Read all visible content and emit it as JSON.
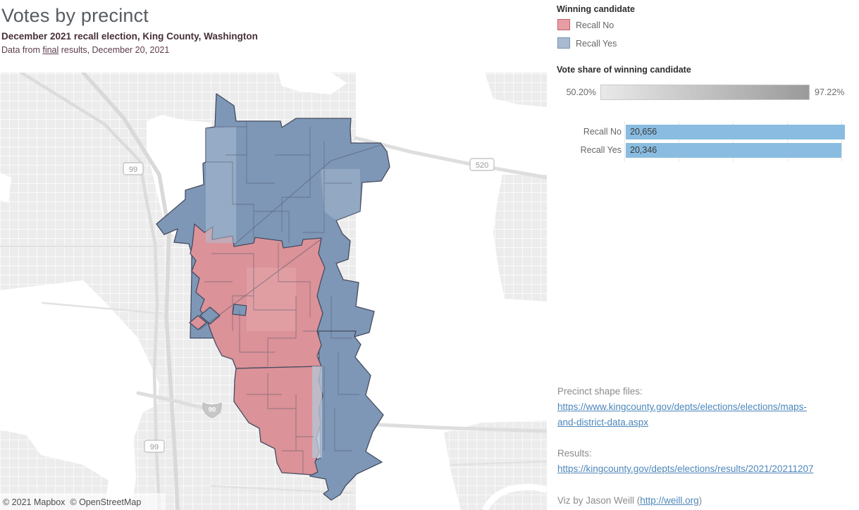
{
  "header": {
    "title": "Votes by precinct",
    "subtitle": "December 2021 recall election, King County, Washington",
    "note_prefix": "Data from ",
    "note_link": "final",
    "note_suffix": " results, December 20, 2021"
  },
  "legend": {
    "title": "Winning candidate",
    "items": [
      {
        "label": "Recall No",
        "fill": "#e89ca3",
        "border": "#c0636e"
      },
      {
        "label": "Recall Yes",
        "fill": "#a9bad0",
        "border": "#7b94af"
      }
    ]
  },
  "vote_share": {
    "title": "Vote share of winning candidate",
    "min_label": "50.20%",
    "max_label": "97.22%",
    "gradient_start": "#e9e9e9",
    "gradient_end": "#9a9a9a"
  },
  "chart_data": {
    "type": "bar",
    "orientation": "horizontal",
    "categories": [
      "Recall No",
      "Recall Yes"
    ],
    "values": [
      20656,
      20346
    ],
    "value_labels": [
      "20,656",
      "20,346"
    ],
    "bar_color": "#89bce0",
    "xlim": [
      0,
      20656
    ],
    "gridlines": true,
    "legend_position": "none"
  },
  "map": {
    "attribution": "© 2021 Mapbox  © OpenStreetMap",
    "colors": {
      "recall_no_fill": "#db9298",
      "recall_yes_fill": "#7e97b6",
      "precinct_stroke": "#454b61",
      "water": "#ffffff",
      "land": "#ececec"
    },
    "shields": [
      {
        "label": "99"
      },
      {
        "label": "520"
      },
      {
        "label": "90"
      },
      {
        "label": "99"
      }
    ]
  },
  "footer": {
    "shape_files_label": "Precinct shape files:",
    "shape_files_link_line1": "https://www.kingcounty.gov/depts/elections/elections/maps-",
    "shape_files_link_line2": "and-district-data.aspx",
    "results_label": "Results:",
    "results_link": "https://kingcounty.gov/depts/elections/results/2021/20211207",
    "credit_prefix": "Viz by Jason Weill (",
    "credit_link": "http://weill.org",
    "credit_suffix": ")"
  }
}
